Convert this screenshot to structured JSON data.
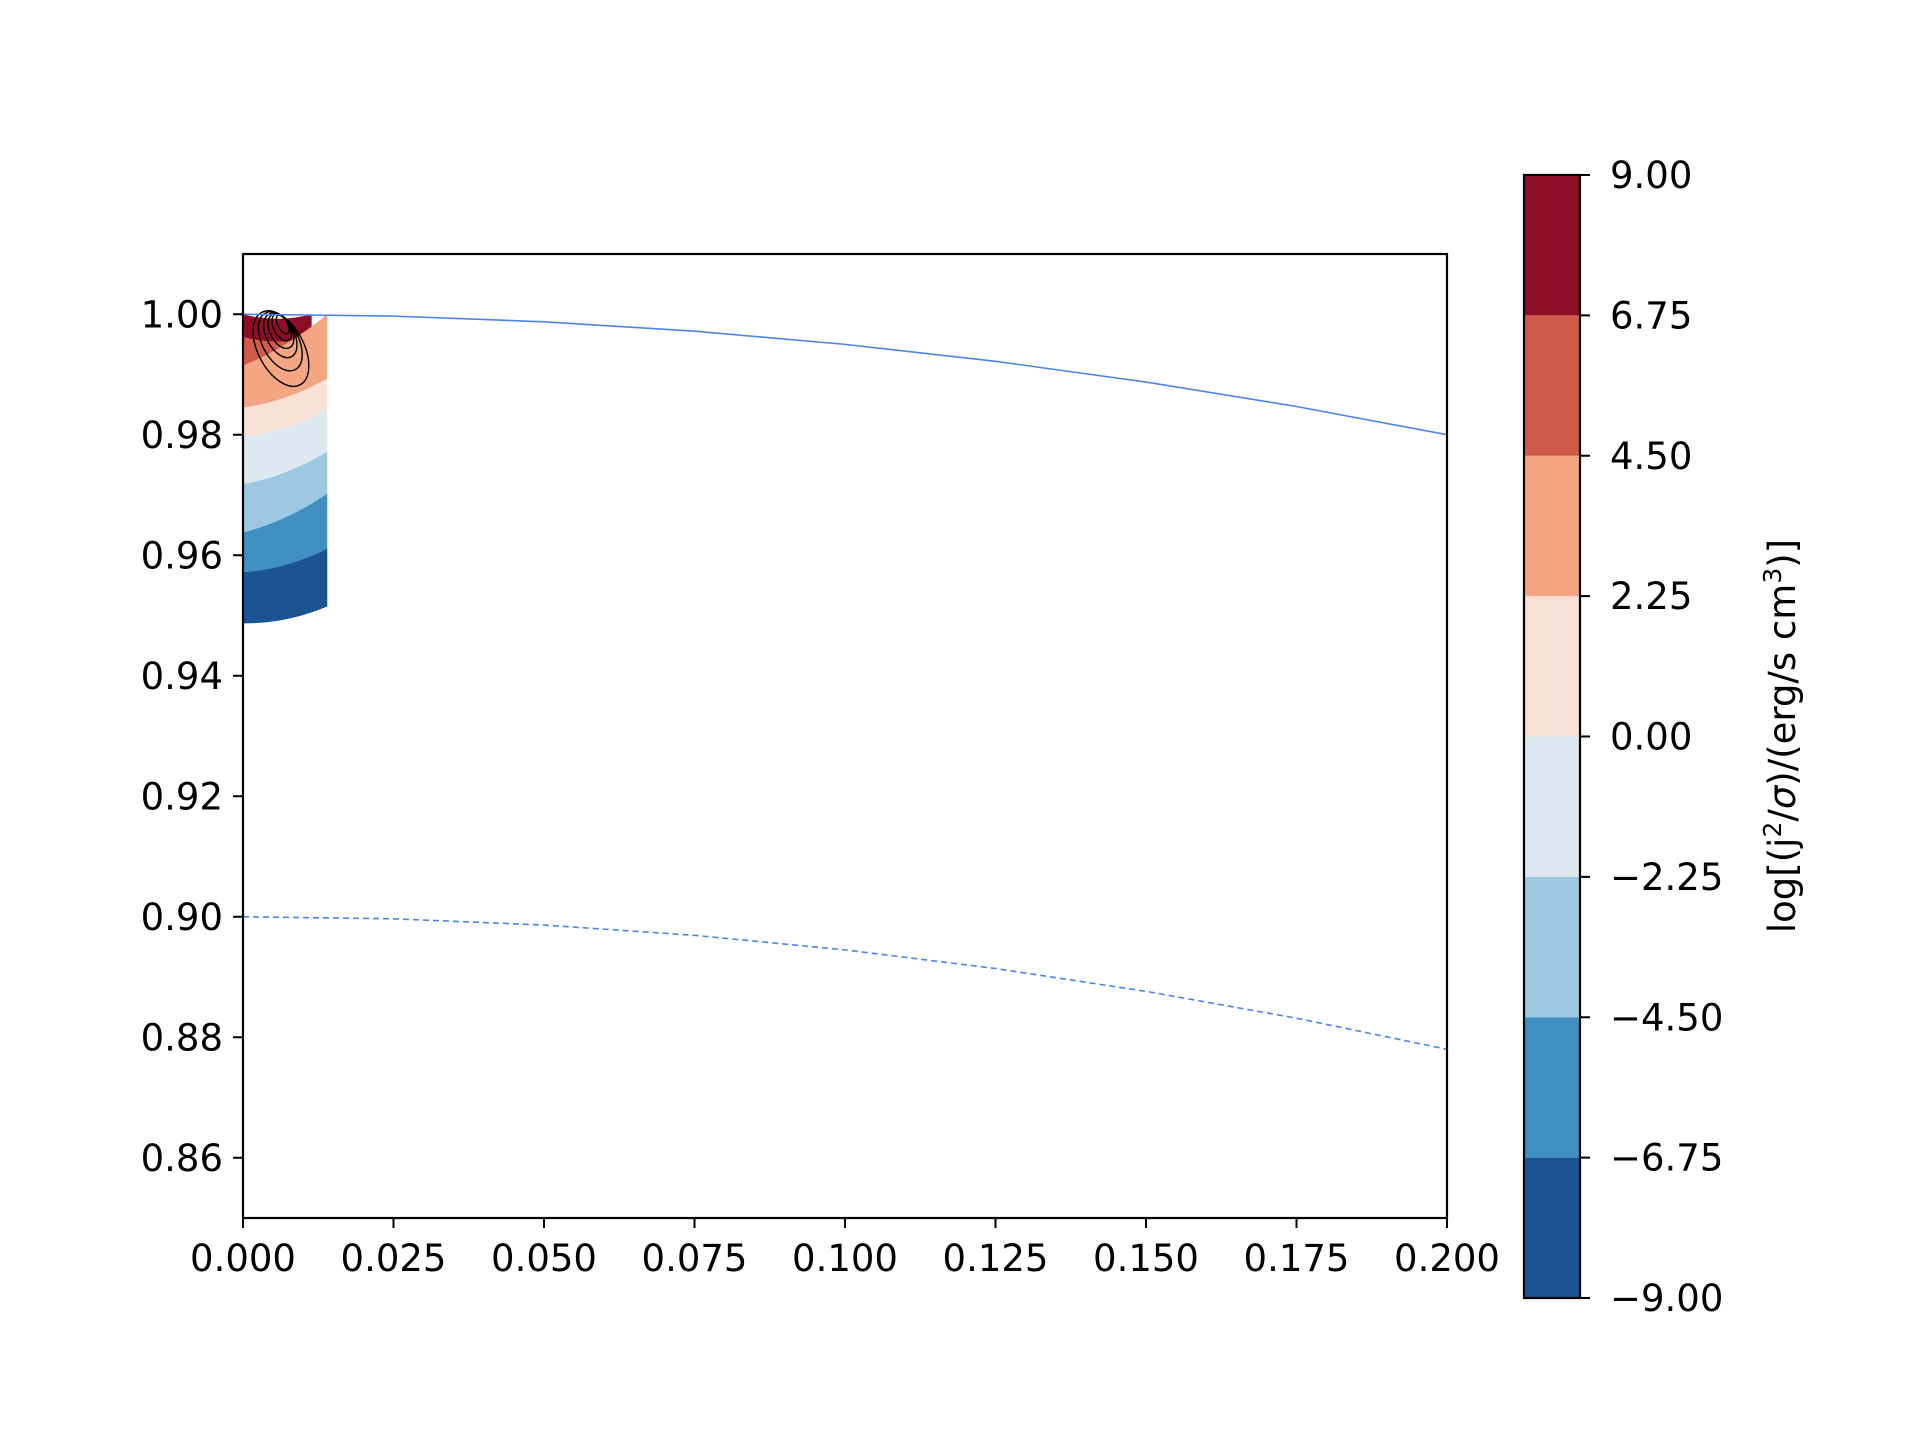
{
  "chart_data": {
    "type": "contour",
    "title": "",
    "xlabel": "",
    "ylabel": "",
    "xlim": [
      0.0,
      0.2
    ],
    "ylim": [
      0.85,
      1.01
    ],
    "xticks": [
      "0.000",
      "0.025",
      "0.050",
      "0.075",
      "0.100",
      "0.125",
      "0.150",
      "0.175",
      "0.200"
    ],
    "yticks": [
      "0.86",
      "0.88",
      "0.90",
      "0.92",
      "0.94",
      "0.96",
      "0.98",
      "1.00"
    ],
    "grid": false,
    "colorbar": {
      "label_prefix": "log[(j",
      "label_sup1": "2",
      "label_mid": "/",
      "label_sigma": "σ",
      "label_suffix": ")/(erg/s cm",
      "label_sup2": "3",
      "label_end": ")]",
      "levels": [
        -9.0,
        -6.75,
        -4.5,
        -2.25,
        0.0,
        2.25,
        4.5,
        6.75,
        9.0
      ],
      "tick_labels": [
        "−9.00",
        "−6.75",
        "−4.50",
        "−2.25",
        "0.00",
        "2.25",
        "4.50",
        "6.75",
        "9.00"
      ],
      "colors": [
        "#1a5493",
        "#3f8fc0",
        "#9dc8df",
        "#dde9f1",
        "#f9e2d5",
        "#f4a582",
        "#d05b4b",
        "#8e0d26"
      ]
    },
    "curves": [
      {
        "style": "solid",
        "color": "#4a86e8",
        "points": [
          [
            0.0,
            1.0
          ],
          [
            0.025,
            0.99969
          ],
          [
            0.05,
            0.99875
          ],
          [
            0.075,
            0.99719
          ],
          [
            0.1,
            0.995
          ],
          [
            0.125,
            0.99219
          ],
          [
            0.15,
            0.98875
          ],
          [
            0.175,
            0.98469
          ],
          [
            0.2,
            0.98
          ]
        ]
      },
      {
        "style": "dashed",
        "color": "#4a86e8",
        "points": [
          [
            0.0,
            0.9
          ],
          [
            0.025,
            0.89966
          ],
          [
            0.05,
            0.89862
          ],
          [
            0.075,
            0.89691
          ],
          [
            0.1,
            0.8945
          ],
          [
            0.125,
            0.89141
          ],
          [
            0.15,
            0.88762
          ],
          [
            0.175,
            0.88316
          ],
          [
            0.2,
            0.878
          ]
        ]
      }
    ],
    "filled_bands": [
      {
        "level_index": 7,
        "left": [
          [
            0.0,
            1.0
          ],
          [
            0.0,
            0.9962
          ]
        ],
        "right": [
          [
            0.0114,
            1.0
          ],
          [
            0.0114,
            0.9962
          ]
        ]
      },
      {
        "level_index": 6,
        "left": [
          [
            0.0,
            0.9962
          ],
          [
            0.0,
            0.9915
          ]
        ],
        "right": [
          [
            0.0114,
            0.9962
          ],
          [
            0.0114,
            0.9915
          ]
        ]
      },
      {
        "level_index": 5,
        "left": [
          [
            0.0,
            0.9915
          ],
          [
            0.0,
            0.9845
          ]
        ],
        "right": [
          [
            0.014,
            1.0
          ],
          [
            0.014,
            0.9893
          ]
        ]
      },
      {
        "level_index": 4,
        "left": [
          [
            0.0,
            0.9845
          ],
          [
            0.0,
            0.9797
          ]
        ],
        "right": [
          [
            0.014,
            0.9893
          ],
          [
            0.014,
            0.9842
          ]
        ]
      },
      {
        "level_index": 3,
        "left": [
          [
            0.0,
            0.9797
          ],
          [
            0.0,
            0.9718
          ]
        ],
        "right": [
          [
            0.014,
            0.9842
          ],
          [
            0.014,
            0.9772
          ]
        ]
      },
      {
        "level_index": 2,
        "left": [
          [
            0.0,
            0.9718
          ],
          [
            0.0,
            0.9638
          ]
        ],
        "right": [
          [
            0.014,
            0.9772
          ],
          [
            0.014,
            0.9702
          ]
        ]
      },
      {
        "level_index": 1,
        "left": [
          [
            0.0,
            0.9638
          ],
          [
            0.0,
            0.9572
          ]
        ],
        "right": [
          [
            0.014,
            0.9702
          ],
          [
            0.014,
            0.9611
          ]
        ]
      },
      {
        "level_index": 0,
        "left": [
          [
            0.0,
            0.9572
          ],
          [
            0.0,
            0.9487
          ]
        ],
        "right": [
          [
            0.014,
            0.9611
          ],
          [
            0.014,
            0.9515
          ]
        ]
      }
    ],
    "contour_lines": [
      {
        "cx": 0.0066,
        "cy": 0.9983,
        "rx": 0.0008,
        "ry": 0.0017
      },
      {
        "cx": 0.0064,
        "cy": 0.9978,
        "rx": 0.0013,
        "ry": 0.0024
      },
      {
        "cx": 0.0063,
        "cy": 0.9972,
        "rx": 0.0018,
        "ry": 0.0031
      },
      {
        "cx": 0.0062,
        "cy": 0.9965,
        "rx": 0.0023,
        "ry": 0.004
      },
      {
        "cx": 0.0062,
        "cy": 0.9955,
        "rx": 0.003,
        "ry": 0.0053
      },
      {
        "cx": 0.0063,
        "cy": 0.9943,
        "rx": 0.0038,
        "ry": 0.0068
      }
    ]
  }
}
